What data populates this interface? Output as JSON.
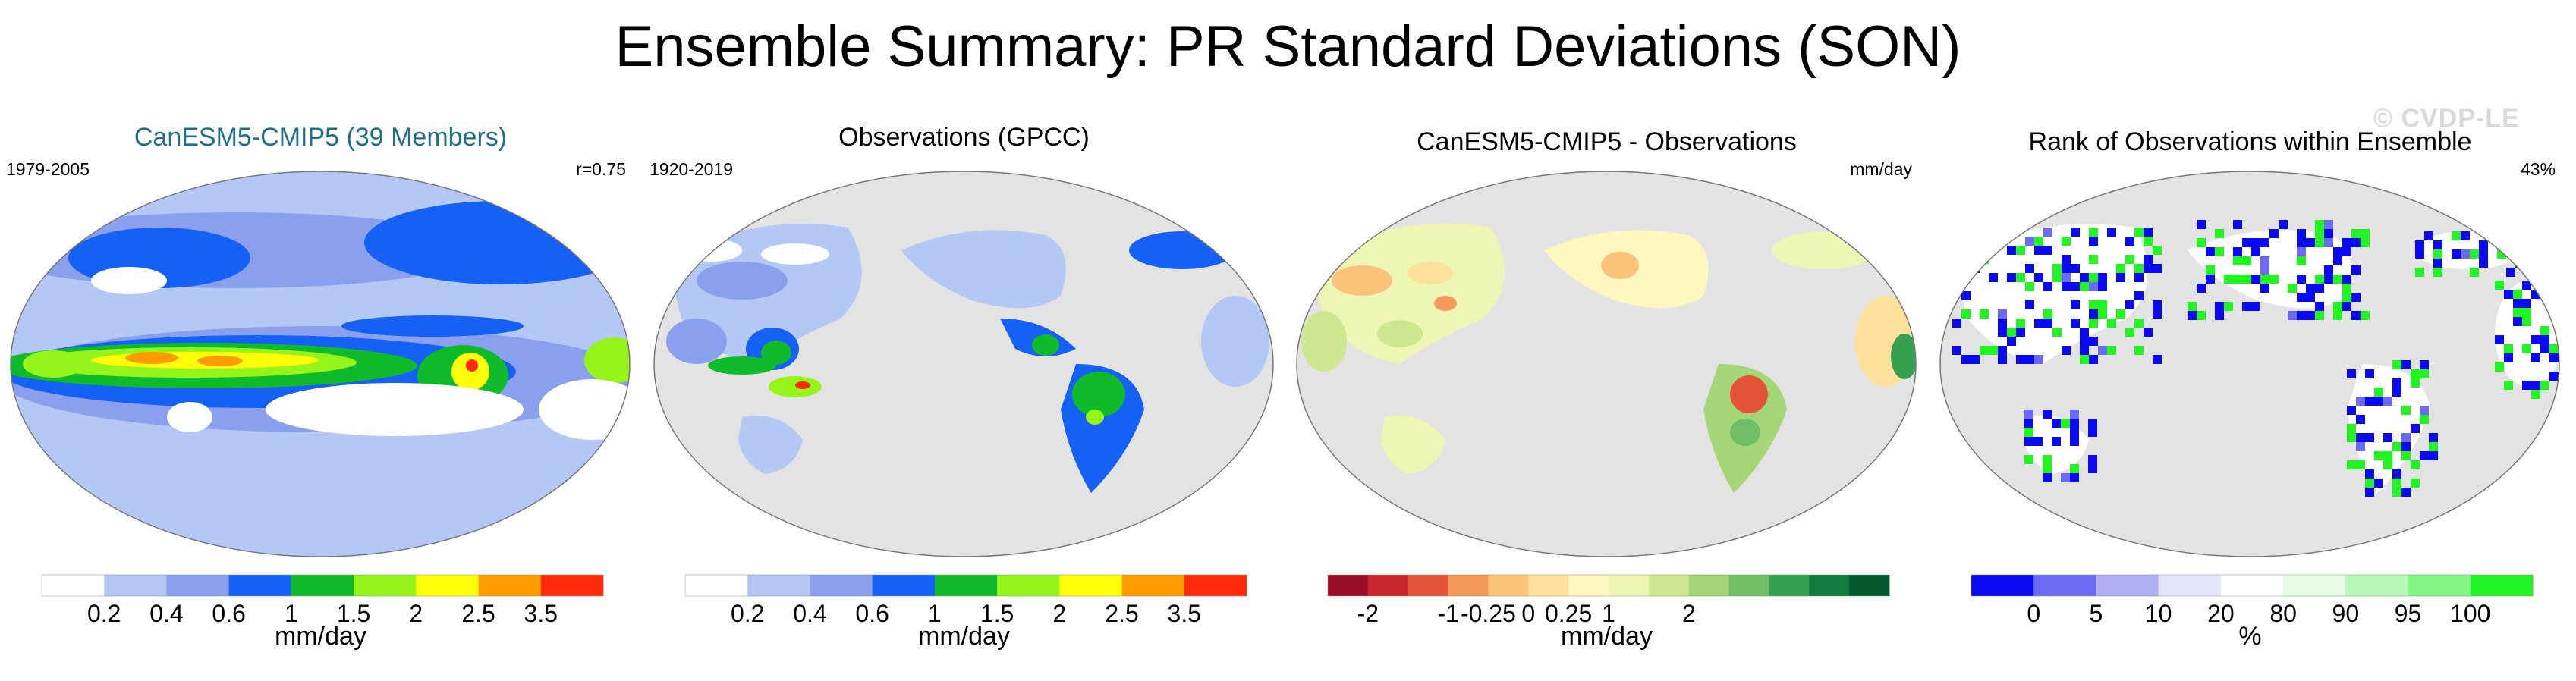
{
  "title": "Ensemble Summary: PR Standard Deviations (SON)",
  "watermark": "© CVDP-LE",
  "panels": [
    {
      "title": "CanESM5-CMIP5 (39 Members)",
      "left_label": "1979-2005",
      "right_label": "r=0.75",
      "units": "mm/day"
    },
    {
      "title": "Observations (GPCC)",
      "left_label": "1920-2019",
      "right_label": "",
      "units": "mm/day"
    },
    {
      "title": "CanESM5-CMIP5 - Observations",
      "left_label": "",
      "right_label": "mm/day",
      "units": "mm/day"
    },
    {
      "title": "Rank of Observations within Ensemble",
      "left_label": "",
      "right_label": "43%",
      "units": "%"
    }
  ],
  "colors": {
    "title_teal": "#1f6f87",
    "ocean_masked": "#e3e3e3",
    "land_fill": "#d4d4d4"
  },
  "chart_data": [
    {
      "type": "heatmap",
      "title": "CanESM5-CMIP5 (39 Members)",
      "period": "1979-2005",
      "pattern_correlation": "r=0.75",
      "colorbar": {
        "label": "mm/day",
        "tick_labels": [
          "0.2",
          "0.4",
          "0.6",
          "1",
          "1.5",
          "2",
          "2.5",
          "3.5"
        ],
        "bin_colors": [
          "#ffffff",
          "#b4c8f5",
          "#8aa0ee",
          "#1560f5",
          "#0fbb2a",
          "#95f51a",
          "#ffff0a",
          "#ff9c00",
          "#ff2a0a"
        ],
        "extends": [
          "min",
          "max"
        ]
      }
    },
    {
      "type": "heatmap",
      "title": "Observations (GPCC)",
      "period": "1920-2019",
      "colorbar": {
        "label": "mm/day",
        "tick_labels": [
          "0.2",
          "0.4",
          "0.6",
          "1",
          "1.5",
          "2",
          "2.5",
          "3.5"
        ],
        "bin_colors": [
          "#ffffff",
          "#b4c8f5",
          "#8aa0ee",
          "#1560f5",
          "#0fbb2a",
          "#95f51a",
          "#ffff0a",
          "#ff9c00",
          "#ff2a0a"
        ],
        "extends": [
          "min",
          "max"
        ]
      }
    },
    {
      "type": "heatmap",
      "title": "CanESM5-CMIP5 - Observations",
      "units": "mm/day",
      "colorbar": {
        "label": "mm/day",
        "tick_labels": [
          "-2",
          "-1",
          "-0.25",
          "0",
          "0.25",
          "1",
          "2"
        ],
        "tick_bounds": [
          1,
          3,
          4,
          5,
          6,
          7,
          9
        ],
        "bin_colors": [
          "#9c0d27",
          "#c8272d",
          "#e35438",
          "#f59a5b",
          "#fbc379",
          "#fde09a",
          "#fff7c0",
          "#eef6b4",
          "#cde88f",
          "#a5d678",
          "#70be65",
          "#35a050",
          "#137b3c",
          "#045a2e"
        ]
      }
    },
    {
      "type": "heatmap",
      "title": "Rank of Observations within Ensemble",
      "pct_in_range": "43%",
      "colorbar": {
        "label": "%",
        "tick_labels": [
          "0",
          "5",
          "10",
          "20",
          "80",
          "90",
          "95",
          "100"
        ],
        "bin_colors": [
          "#0a0af0",
          "#6a6af5",
          "#b0b0f5",
          "#e4e4fb",
          "#ffffff",
          "#e5fbe5",
          "#b7f7b7",
          "#85f585",
          "#22f322"
        ]
      }
    }
  ]
}
